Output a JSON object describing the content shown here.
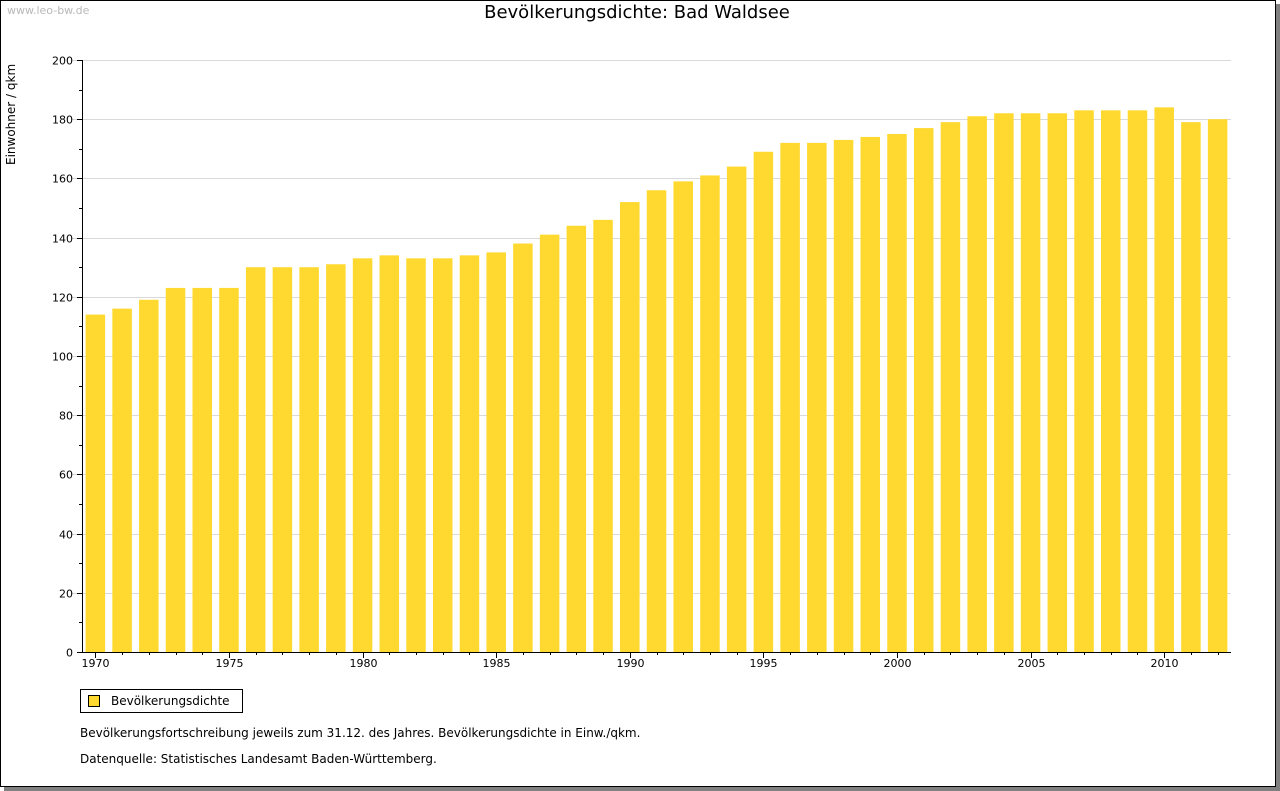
{
  "watermark": "www.leo-bw.de",
  "notes": {
    "description": "Bevölkerungsfortschreibung jeweils zum 31.12. des Jahres. Bevölkerungsdichte in Einw./qkm.",
    "source": "Datenquelle: Statistisches Landesamt Baden-Württemberg."
  },
  "colors": {
    "bar": "#FFD92F",
    "grid": "#d9d9d9",
    "axis": "#000000"
  },
  "chart_data": {
    "type": "bar",
    "title": "Bevölkerungsdichte: Bad Waldsee",
    "xlabel": "",
    "ylabel": "Einwohner / qkm",
    "ylim": [
      0,
      200
    ],
    "yticks": [
      0,
      20,
      40,
      60,
      80,
      100,
      120,
      140,
      160,
      180,
      200
    ],
    "xticks": [
      "1970",
      "1975",
      "1980",
      "1985",
      "1990",
      "1995",
      "2000",
      "2005",
      "2010"
    ],
    "grid": true,
    "legend": "bottom-left",
    "categories": [
      "1970",
      "1971",
      "1972",
      "1973",
      "1974",
      "1975",
      "1976",
      "1977",
      "1978",
      "1979",
      "1980",
      "1981",
      "1982",
      "1983",
      "1984",
      "1985",
      "1986",
      "1987",
      "1988",
      "1989",
      "1990",
      "1991",
      "1992",
      "1993",
      "1994",
      "1995",
      "1996",
      "1997",
      "1998",
      "1999",
      "2000",
      "2001",
      "2002",
      "2003",
      "2004",
      "2005",
      "2006",
      "2007",
      "2008",
      "2009",
      "2010",
      "2011",
      "2012"
    ],
    "series": [
      {
        "name": "Bevölkerungsdichte",
        "values": [
          114,
          116,
          119,
          123,
          123,
          123,
          130,
          130,
          130,
          131,
          133,
          134,
          133,
          133,
          134,
          135,
          138,
          141,
          144,
          146,
          152,
          156,
          159,
          161,
          164,
          169,
          172,
          172,
          173,
          174,
          175,
          177,
          179,
          181,
          182,
          182,
          182,
          183,
          183,
          183,
          184,
          179,
          180
        ]
      }
    ]
  }
}
